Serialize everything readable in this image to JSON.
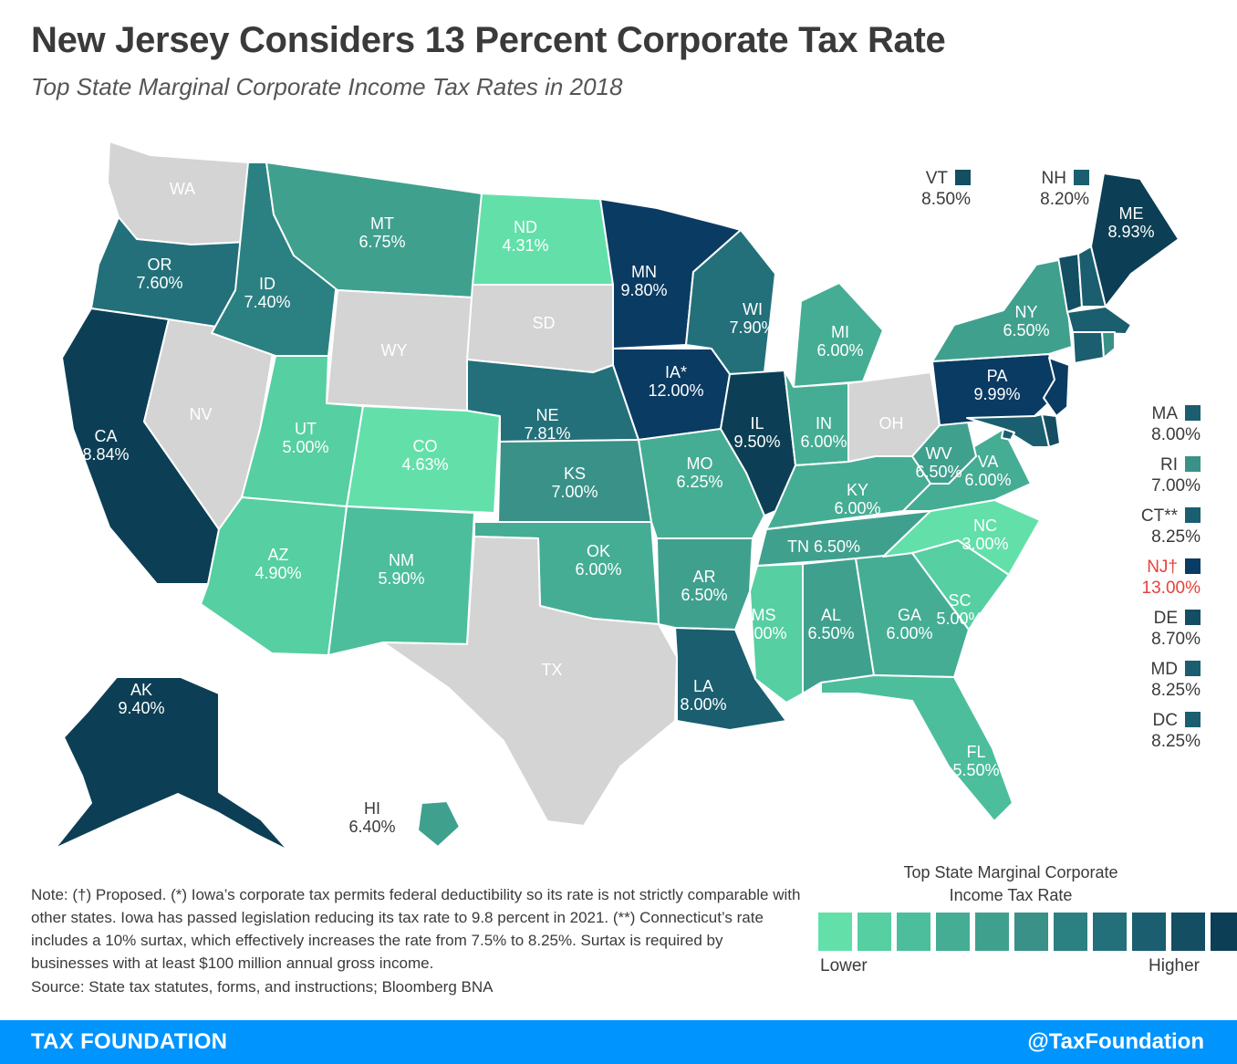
{
  "title": "New Jersey Considers 13 Percent Corporate Tax Rate",
  "subtitle": "Top State Marginal Corporate Income Tax Rates in 2018",
  "palette": {
    "no_tax": "#d4d4d4",
    "scale": [
      "#63e0aa",
      "#56cfa2",
      "#4cbe9b",
      "#45ad94",
      "#40a08e",
      "#399188",
      "#2b8081",
      "#23707a",
      "#1a5e6f",
      "#134e63",
      "#0c3f55",
      "#0a3b63"
    ],
    "highlight_text": "#e8413b"
  },
  "states": {
    "WA": {
      "label": "WA",
      "rate": "",
      "shade": -1
    },
    "OR": {
      "label": "OR",
      "rate": "7.60%",
      "shade": 7
    },
    "CA": {
      "label": "CA",
      "rate": "8.84%",
      "shade": 10
    },
    "NV": {
      "label": "NV",
      "rate": "",
      "shade": -1
    },
    "ID": {
      "label": "ID",
      "rate": "7.40%",
      "shade": 6
    },
    "MT": {
      "label": "MT",
      "rate": "6.75%",
      "shade": 4
    },
    "WY": {
      "label": "WY",
      "rate": "",
      "shade": -1
    },
    "UT": {
      "label": "UT",
      "rate": "5.00%",
      "shade": 1
    },
    "CO": {
      "label": "CO",
      "rate": "4.63%",
      "shade": 0
    },
    "AZ": {
      "label": "AZ",
      "rate": "4.90%",
      "shade": 1
    },
    "NM": {
      "label": "NM",
      "rate": "5.90%",
      "shade": 2
    },
    "ND": {
      "label": "ND",
      "rate": "4.31%",
      "shade": 0
    },
    "SD": {
      "label": "SD",
      "rate": "",
      "shade": -1
    },
    "NE": {
      "label": "NE",
      "rate": "7.81%",
      "shade": 7
    },
    "KS": {
      "label": "KS",
      "rate": "7.00%",
      "shade": 5
    },
    "OK": {
      "label": "OK",
      "rate": "6.00%",
      "shade": 3
    },
    "TX": {
      "label": "TX",
      "rate": "",
      "shade": -1
    },
    "MN": {
      "label": "MN",
      "rate": "9.80%",
      "shade": 11
    },
    "IA": {
      "label": "IA*",
      "rate": "12.00%",
      "shade": 11
    },
    "MO": {
      "label": "MO",
      "rate": "6.25%",
      "shade": 3
    },
    "AR": {
      "label": "AR",
      "rate": "6.50%",
      "shade": 4
    },
    "LA": {
      "label": "LA",
      "rate": "8.00%",
      "shade": 8
    },
    "WI": {
      "label": "WI",
      "rate": "7.90%",
      "shade": 7
    },
    "IL": {
      "label": "IL",
      "rate": "9.50%",
      "shade": 10
    },
    "MI": {
      "label": "MI",
      "rate": "6.00%",
      "shade": 3
    },
    "IN": {
      "label": "IN",
      "rate": "6.00%",
      "shade": 3
    },
    "OH": {
      "label": "OH",
      "rate": "",
      "shade": -1
    },
    "KY": {
      "label": "KY",
      "rate": "6.00%",
      "shade": 3
    },
    "TN": {
      "label": "TN",
      "rate": "6.50%",
      "shade": 4
    },
    "MS": {
      "label": "MS",
      "rate": "5.00%",
      "shade": 1
    },
    "AL": {
      "label": "AL",
      "rate": "6.50%",
      "shade": 4
    },
    "GA": {
      "label": "GA",
      "rate": "6.00%",
      "shade": 3
    },
    "FL": {
      "label": "FL",
      "rate": "5.50%",
      "shade": 2
    },
    "SC": {
      "label": "SC",
      "rate": "5.00%",
      "shade": 1
    },
    "NC": {
      "label": "NC",
      "rate": "3.00%",
      "shade": 0
    },
    "VA": {
      "label": "VA",
      "rate": "6.00%",
      "shade": 3
    },
    "WV": {
      "label": "WV",
      "rate": "6.50%",
      "shade": 4
    },
    "PA": {
      "label": "PA",
      "rate": "9.99%",
      "shade": 11
    },
    "NY": {
      "label": "NY",
      "rate": "6.50%",
      "shade": 4
    },
    "ME": {
      "label": "ME",
      "rate": "8.93%",
      "shade": 10
    },
    "AK": {
      "label": "AK",
      "rate": "9.40%",
      "shade": 10
    },
    "HI": {
      "label": "HI",
      "rate": "6.40%",
      "shade": 4
    }
  },
  "small_states": [
    {
      "code": "VT",
      "rate": "8.50%",
      "shade": 9
    },
    {
      "code": "NH",
      "rate": "8.20%",
      "shade": 8
    },
    {
      "code": "MA",
      "rate": "8.00%",
      "shade": 8
    },
    {
      "code": "RI",
      "rate": "7.00%",
      "shade": 5
    },
    {
      "code": "CT**",
      "rate": "8.25%",
      "shade": 8
    },
    {
      "code": "NJ†",
      "rate": "13.00%",
      "shade": 11,
      "highlight": true
    },
    {
      "code": "DE",
      "rate": "8.70%",
      "shade": 9
    },
    {
      "code": "MD",
      "rate": "8.25%",
      "shade": 8
    },
    {
      "code": "DC",
      "rate": "8.25%",
      "shade": 8
    }
  ],
  "legend": {
    "title": "Top State Marginal Corporate Income Tax Rate",
    "low_label": "Lower",
    "high_label": "Higher",
    "colors": [
      "#63e0aa",
      "#56cfa2",
      "#4cbe9b",
      "#45ad94",
      "#40a08e",
      "#399188",
      "#2b8081",
      "#23707a",
      "#1a5e6f",
      "#134e63",
      "#0c3f55",
      "#003d6b"
    ]
  },
  "note": "Note: (†) Proposed.  (*) Iowa’s corporate tax permits federal deductibility so its rate is not strictly comparable with other states. Iowa has passed legislation reducing its tax rate to 9.8 percent in 2021. (**) Connecticut’s rate includes a 10% surtax, which effectively increases the rate from 7.5% to 8.25%. Surtax is required by businesses with at least $100 million annual gross income.",
  "source": "Source: State tax statutes, forms, and instructions; Bloomberg BNA",
  "footer": {
    "brand": "TAX FOUNDATION",
    "handle": "@TaxFoundation"
  }
}
